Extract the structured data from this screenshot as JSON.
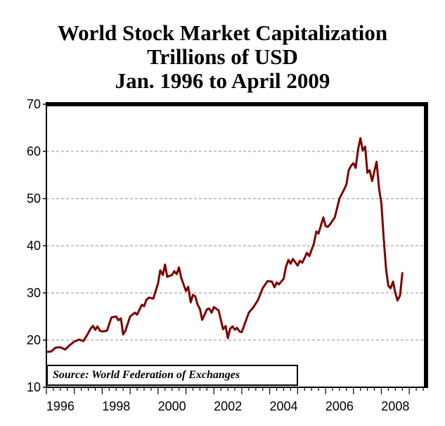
{
  "title": {
    "line1": "World Stock Market Capitalization",
    "line2": "Trillions of USD",
    "line3": "Jan. 1996 to April 2009"
  },
  "source_note": "Source: World Federation of Exchanges",
  "colors": {
    "series": "#7f0000",
    "grid": "#8c8c8c",
    "axis": "#000000"
  },
  "chart_data": {
    "type": "line",
    "title": "World Stock Market Capitalization Trillions of USD Jan. 1996 to April 2009",
    "xlabel": "",
    "ylabel": "",
    "xlim": [
      1996.0,
      2009.6
    ],
    "ylim": [
      10,
      70
    ],
    "yticks": [
      10,
      20,
      30,
      40,
      50,
      60,
      70
    ],
    "xticks": [
      1996,
      1998,
      2000,
      2002,
      2004,
      2006,
      2008
    ],
    "grid": true,
    "series": [
      {
        "name": "World Stock Market Capitalization",
        "points": [
          [
            1996.0,
            17.5
          ],
          [
            1996.17,
            17.6
          ],
          [
            1996.33,
            18.4
          ],
          [
            1996.5,
            18.5
          ],
          [
            1996.67,
            18.0
          ],
          [
            1996.83,
            18.9
          ],
          [
            1997.0,
            19.7
          ],
          [
            1997.17,
            20.1
          ],
          [
            1997.33,
            19.8
          ],
          [
            1997.5,
            21.5
          ],
          [
            1997.58,
            22.4
          ],
          [
            1997.67,
            23.0
          ],
          [
            1997.75,
            22.2
          ],
          [
            1997.83,
            22.9
          ],
          [
            1997.92,
            22.0
          ],
          [
            1998.0,
            21.8
          ],
          [
            1998.17,
            22.0
          ],
          [
            1998.33,
            24.8
          ],
          [
            1998.5,
            25.0
          ],
          [
            1998.58,
            24.2
          ],
          [
            1998.67,
            24.6
          ],
          [
            1998.75,
            21.2
          ],
          [
            1998.83,
            22.0
          ],
          [
            1999.0,
            25.0
          ],
          [
            1999.17,
            25.8
          ],
          [
            1999.25,
            25.4
          ],
          [
            1999.42,
            27.5
          ],
          [
            1999.5,
            27.2
          ],
          [
            1999.58,
            28.5
          ],
          [
            1999.67,
            29.0
          ],
          [
            1999.83,
            28.8
          ],
          [
            2000.0,
            32.0
          ],
          [
            2000.08,
            34.8
          ],
          [
            2000.17,
            33.8
          ],
          [
            2000.25,
            36.0
          ],
          [
            2000.33,
            33.4
          ],
          [
            2000.5,
            33.8
          ],
          [
            2000.58,
            34.6
          ],
          [
            2000.67,
            34.0
          ],
          [
            2000.75,
            35.4
          ],
          [
            2000.83,
            33.2
          ],
          [
            2001.0,
            30.4
          ],
          [
            2001.08,
            31.3
          ],
          [
            2001.17,
            28.0
          ],
          [
            2001.25,
            29.6
          ],
          [
            2001.33,
            29.3
          ],
          [
            2001.42,
            27.5
          ],
          [
            2001.5,
            26.6
          ],
          [
            2001.58,
            24.3
          ],
          [
            2001.67,
            25.4
          ],
          [
            2001.75,
            26.5
          ],
          [
            2001.83,
            26.7
          ],
          [
            2001.92,
            25.8
          ],
          [
            2002.0,
            27.0
          ],
          [
            2002.17,
            26.3
          ],
          [
            2002.33,
            22.3
          ],
          [
            2002.42,
            23.0
          ],
          [
            2002.5,
            20.4
          ],
          [
            2002.58,
            22.4
          ],
          [
            2002.67,
            22.9
          ],
          [
            2002.75,
            22.2
          ],
          [
            2002.83,
            22.6
          ],
          [
            2002.92,
            21.8
          ],
          [
            2003.0,
            21.7
          ],
          [
            2003.17,
            24.5
          ],
          [
            2003.25,
            25.8
          ],
          [
            2003.42,
            27.0
          ],
          [
            2003.58,
            28.5
          ],
          [
            2003.75,
            31.0
          ],
          [
            2003.92,
            32.5
          ],
          [
            2004.08,
            32.4
          ],
          [
            2004.17,
            31.2
          ],
          [
            2004.25,
            32.2
          ],
          [
            2004.33,
            31.8
          ],
          [
            2004.5,
            33.0
          ],
          [
            2004.58,
            35.5
          ],
          [
            2004.67,
            37.0
          ],
          [
            2004.75,
            36.2
          ],
          [
            2004.83,
            37.2
          ],
          [
            2005.0,
            35.8
          ],
          [
            2005.08,
            36.8
          ],
          [
            2005.17,
            36.4
          ],
          [
            2005.33,
            38.5
          ],
          [
            2005.42,
            37.8
          ],
          [
            2005.58,
            40.4
          ],
          [
            2005.67,
            43.0
          ],
          [
            2005.75,
            42.6
          ],
          [
            2005.92,
            46.0
          ],
          [
            2006.0,
            44.2
          ],
          [
            2006.08,
            44.0
          ],
          [
            2006.17,
            44.6
          ],
          [
            2006.33,
            46.0
          ],
          [
            2006.5,
            50.0
          ],
          [
            2006.67,
            52.0
          ],
          [
            2006.75,
            53.0
          ],
          [
            2006.83,
            56.0
          ],
          [
            2006.92,
            57.0
          ],
          [
            2007.0,
            57.5
          ],
          [
            2007.08,
            56.5
          ],
          [
            2007.17,
            60.5
          ],
          [
            2007.25,
            62.8
          ],
          [
            2007.33,
            60.2
          ],
          [
            2007.42,
            61.0
          ],
          [
            2007.5,
            55.5
          ],
          [
            2007.58,
            56.0
          ],
          [
            2007.67,
            53.7
          ],
          [
            2007.75,
            55.8
          ],
          [
            2007.83,
            57.8
          ],
          [
            2007.92,
            52.0
          ],
          [
            2008.0,
            49.0
          ],
          [
            2008.08,
            42.0
          ],
          [
            2008.17,
            35.0
          ],
          [
            2008.25,
            31.5
          ],
          [
            2008.33,
            31.0
          ],
          [
            2008.42,
            32.4
          ],
          [
            2008.5,
            30.0
          ],
          [
            2008.58,
            28.4
          ],
          [
            2008.67,
            29.5
          ],
          [
            2008.75,
            34.2
          ]
        ]
      }
    ]
  }
}
